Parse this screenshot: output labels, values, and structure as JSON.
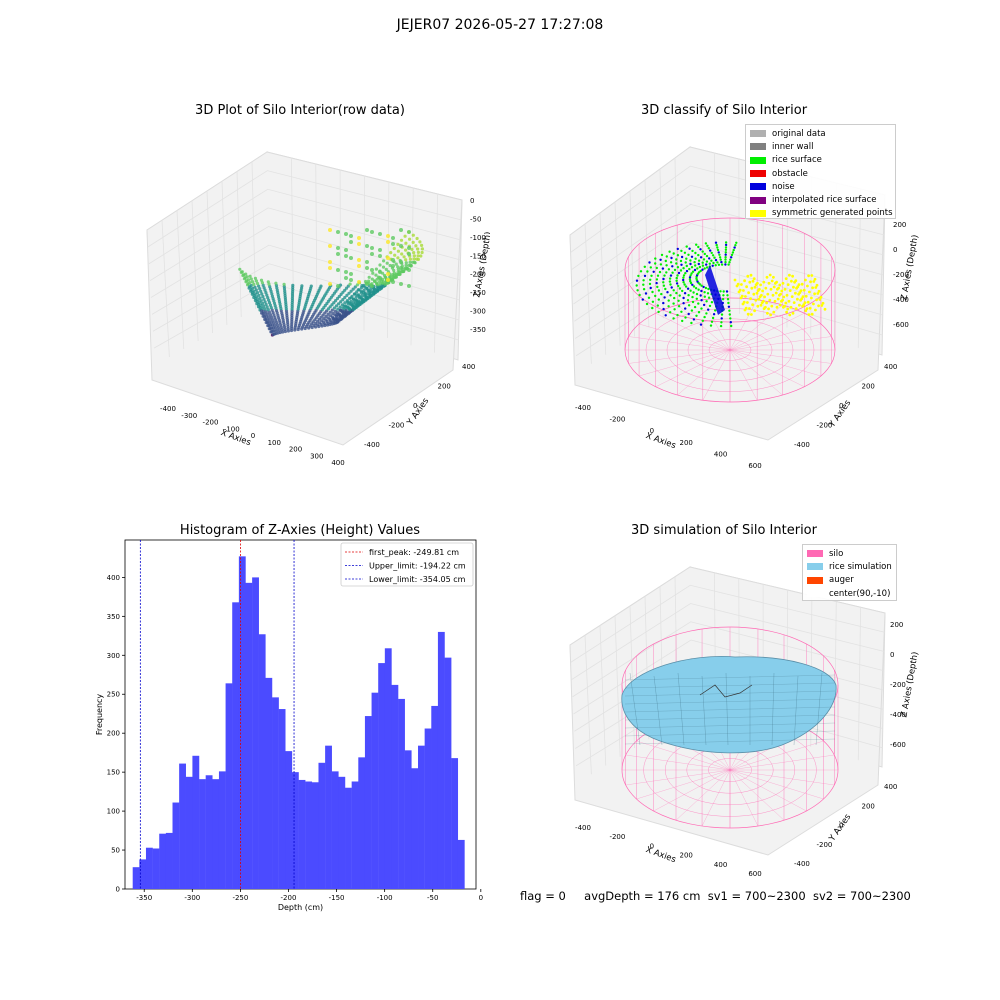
{
  "figure_title": "JEJER07 2026-05-27 17:27:08",
  "panels": {
    "raw": {
      "title": "3D Plot of Silo Interior(row data)",
      "xlabel": "X Axies",
      "ylabel": "Y Axies",
      "zlabel": "Z Axies (Depth)",
      "x_ticks": [
        "-400",
        "-300",
        "-200",
        "-100",
        "0",
        "100",
        "200",
        "300",
        "400"
      ],
      "y_ticks": [
        "-400",
        "-200",
        "0",
        "200",
        "400"
      ],
      "z_ticks": [
        "0",
        "-50",
        "-100",
        "-150",
        "-200",
        "-250",
        "-300",
        "-350"
      ]
    },
    "classify": {
      "title": "3D classify of Silo Interior",
      "xlabel": "X Axies",
      "ylabel": "Y Axies",
      "zlabel": "Z Axies (Depth)",
      "x_ticks": [
        "-400",
        "-200",
        "0",
        "200",
        "400",
        "600"
      ],
      "y_ticks": [
        "-400",
        "-200",
        "0",
        "200",
        "400"
      ],
      "z_ticks": [
        "200",
        "0",
        "-200",
        "-400",
        "-600"
      ],
      "legend": [
        {
          "label": "original data",
          "color": "#b0b0b0"
        },
        {
          "label": "inner wall",
          "color": "#808080"
        },
        {
          "label": "rice surface",
          "color": "#00ee00"
        },
        {
          "label": "obstacle",
          "color": "#ee0000"
        },
        {
          "label": "noise",
          "color": "#0000dd"
        },
        {
          "label": "interpolated rice surface",
          "color": "#800080"
        },
        {
          "label": "symmetric generated points",
          "color": "#ffff00"
        }
      ]
    },
    "simulation": {
      "title": "3D simulation of Silo Interior",
      "xlabel": "X Axies",
      "ylabel": "Y Axies",
      "zlabel": "Z Axies (Depth)",
      "x_ticks": [
        "-400",
        "-200",
        "0",
        "200",
        "400",
        "600"
      ],
      "y_ticks": [
        "-400",
        "-200",
        "0",
        "200",
        "400"
      ],
      "z_ticks": [
        "200",
        "0",
        "-200",
        "-400",
        "-600"
      ],
      "legend": [
        {
          "label": "silo",
          "color": "#ff69b4"
        },
        {
          "label": "rice simulation",
          "color": "#87ceeb"
        },
        {
          "label": "auger",
          "color": "#ff4500"
        },
        {
          "label": "center(90,-10)",
          "color": "#ffffff"
        }
      ]
    }
  },
  "status": {
    "flag": "flag = 0",
    "avg_depth": "avgDepth = 176 cm",
    "sv1": "sv1 = 700~2300",
    "sv2": "sv2 = 700~2300"
  },
  "colors": {
    "bars": "#4b4bff",
    "first_peak": "#e00000",
    "limits": "#0000cc",
    "silo": "#ff69b4",
    "rice": "#87ceeb"
  },
  "chart_data": {
    "type": "bar",
    "title": "Histogram of Z-Axies (Height) Values",
    "xlabel": "Depth (cm)",
    "ylabel": "Frequency",
    "xlim": [
      -370,
      -5
    ],
    "ylim": [
      0,
      448
    ],
    "x_ticks": [
      -350,
      -300,
      -250,
      -200,
      -150,
      -100,
      -50,
      0
    ],
    "y_ticks": [
      0,
      50,
      100,
      150,
      200,
      250,
      300,
      350,
      400
    ],
    "bin_start": -362,
    "bin_width": 6.9,
    "values": [
      28,
      38,
      53,
      52,
      71,
      72,
      111,
      161,
      144,
      171,
      141,
      146,
      141,
      151,
      264,
      368,
      427,
      393,
      400,
      327,
      271,
      246,
      231,
      177,
      150,
      140,
      138,
      137,
      162,
      184,
      151,
      144,
      130,
      138,
      169,
      222,
      252,
      290,
      309,
      262,
      244,
      178,
      155,
      184,
      206,
      235,
      330,
      297,
      168,
      63
    ],
    "lines": [
      {
        "label": "first_peak: -249.81 cm",
        "x": -249.81,
        "color": "#e00000"
      },
      {
        "label": "Upper_limit: -194.22 cm",
        "x": -194.22,
        "color": "#0000cc"
      },
      {
        "label": "Lower_limit: -354.05 cm",
        "x": -354.05,
        "color": "#0000cc"
      }
    ]
  }
}
